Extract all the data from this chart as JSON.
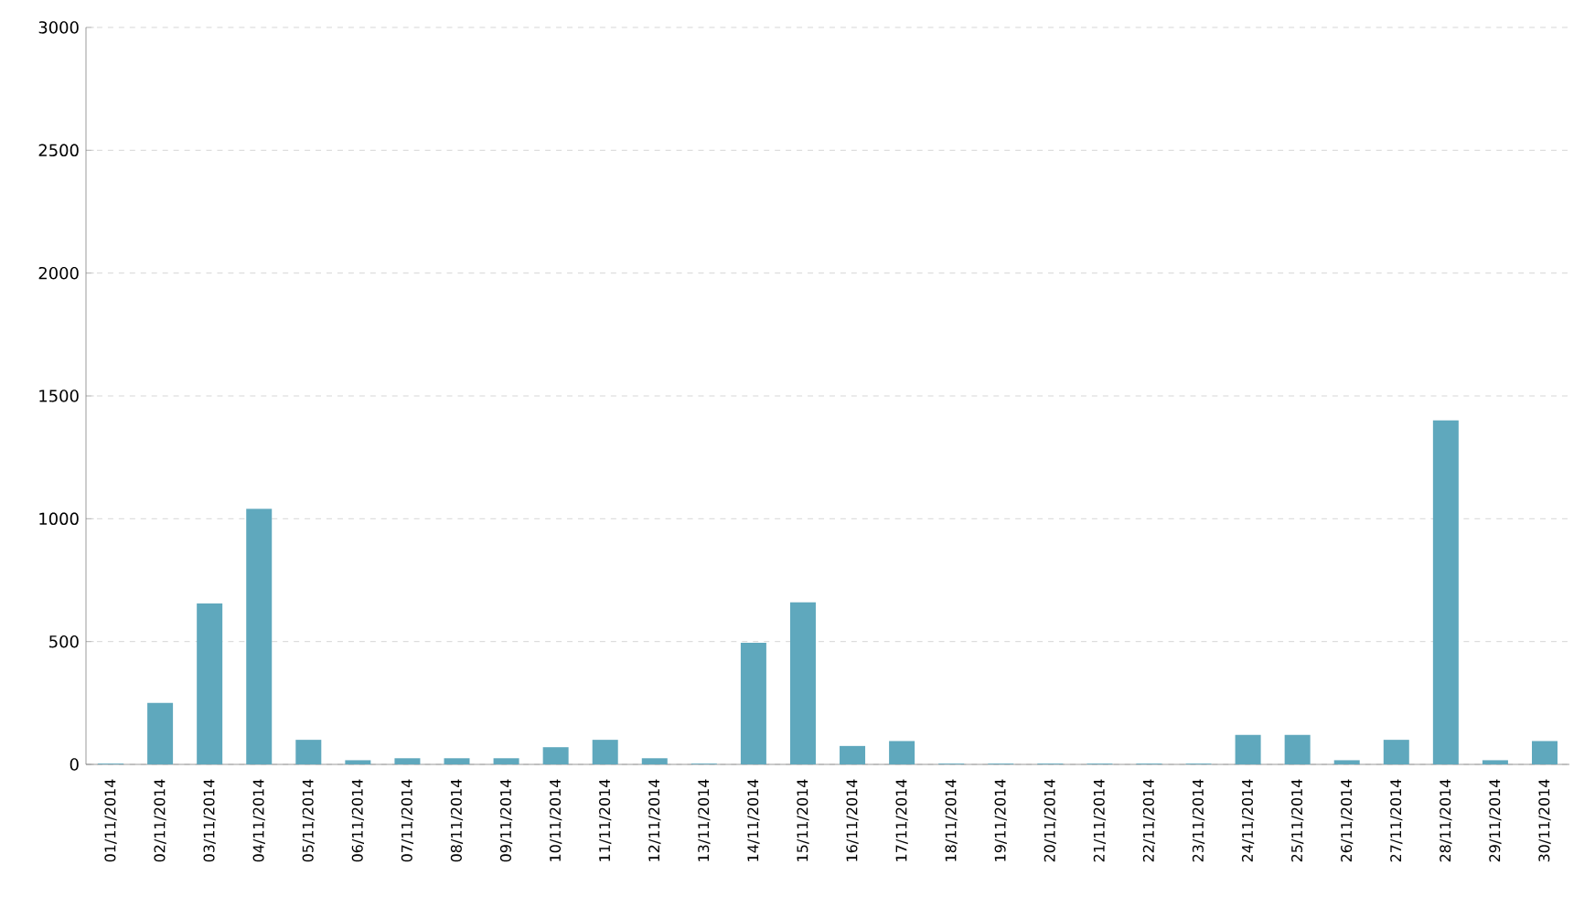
{
  "chart_data": {
    "type": "bar",
    "categories": [
      "01/11/2014",
      "02/11/2014",
      "03/11/2014",
      "04/11/2014",
      "05/11/2014",
      "06/11/2014",
      "07/11/2014",
      "08/11/2014",
      "09/11/2014",
      "10/11/2014",
      "11/11/2014",
      "12/11/2014",
      "13/11/2014",
      "14/11/2014",
      "15/11/2014",
      "16/11/2014",
      "17/11/2014",
      "18/11/2014",
      "19/11/2014",
      "20/11/2014",
      "21/11/2014",
      "22/11/2014",
      "23/11/2014",
      "24/11/2014",
      "25/11/2014",
      "26/11/2014",
      "27/11/2014",
      "28/11/2014",
      "29/11/2014",
      "30/11/2014"
    ],
    "values": [
      3,
      250,
      655,
      1040,
      100,
      17,
      25,
      25,
      25,
      70,
      100,
      25,
      3,
      495,
      660,
      75,
      95,
      3,
      3,
      3,
      3,
      3,
      3,
      120,
      120,
      17,
      100,
      1400,
      17,
      95
    ],
    "color": "#5fa8bd",
    "ylim": [
      0,
      3000
    ],
    "yticks": [
      0,
      500,
      1000,
      1500,
      2000,
      2500,
      3000
    ],
    "grid": "y"
  }
}
